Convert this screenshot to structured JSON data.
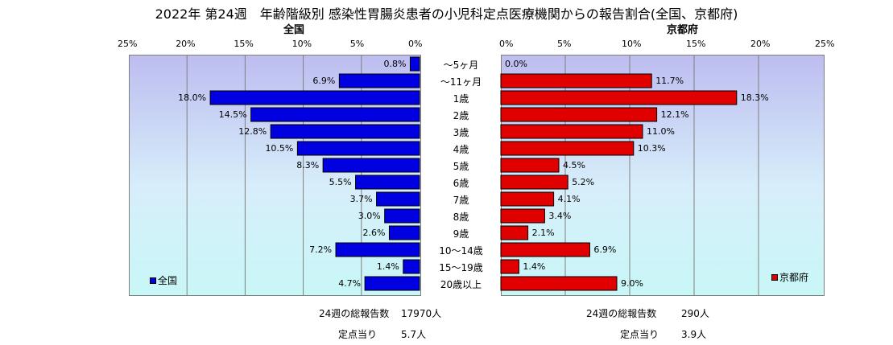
{
  "chart_data": {
    "type": "bar",
    "title": "2022年 第24週　年齢階級別 感染性胃腸炎患者の小児科定点医療機関からの報告割合(全国、京都府)",
    "categories": [
      "～5ヶ月",
      "～11ヶ月",
      "1歳",
      "2歳",
      "3歳",
      "4歳",
      "5歳",
      "6歳",
      "7歳",
      "8歳",
      "9歳",
      "10～14歳",
      "15～19歳",
      "20歳以上"
    ],
    "xlim": [
      0,
      25
    ],
    "tick_labels": [
      "0%",
      "5%",
      "10%",
      "15%",
      "20%",
      "25%"
    ],
    "grid": true,
    "series": [
      {
        "name": "全国",
        "color": "#0000e0",
        "values": [
          0.8,
          6.9,
          18.0,
          14.5,
          12.8,
          10.5,
          8.3,
          5.5,
          3.7,
          3.0,
          2.6,
          7.2,
          1.4,
          4.7
        ],
        "labels": [
          "0.8%",
          "6.9%",
          "18.0%",
          "14.5%",
          "12.8%",
          "10.5%",
          "8.3%",
          "5.5%",
          "3.7%",
          "3.0%",
          "2.6%",
          "7.2%",
          "1.4%",
          "4.7%"
        ],
        "legend_position": "bottom-left",
        "total_label": "24週の総報告数",
        "total_value": "17970人",
        "per_site_label": "定点当り",
        "per_site_value": "5.7人"
      },
      {
        "name": "京都府",
        "color": "#e00000",
        "values": [
          0.0,
          11.7,
          18.3,
          12.1,
          11.0,
          10.3,
          4.5,
          5.2,
          4.1,
          3.4,
          2.1,
          6.9,
          1.4,
          9.0
        ],
        "labels": [
          "0.0%",
          "11.7%",
          "18.3%",
          "12.1%",
          "11.0%",
          "10.3%",
          "4.5%",
          "5.2%",
          "4.1%",
          "3.4%",
          "2.1%",
          "6.9%",
          "1.4%",
          "9.0%"
        ],
        "legend_position": "bottom-right",
        "total_label": "24週の総報告数",
        "total_value": "290人",
        "per_site_label": "定点当り",
        "per_site_value": "3.9人"
      }
    ]
  }
}
